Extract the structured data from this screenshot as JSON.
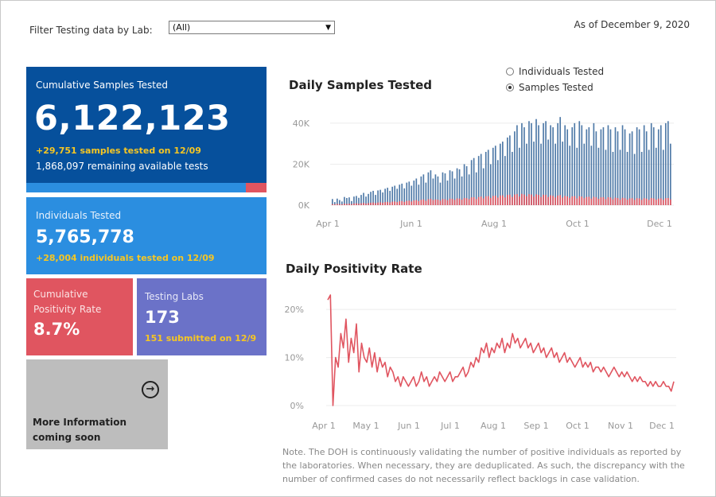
{
  "filter": {
    "label": "Filter Testing data by Lab:",
    "selected": "(All)"
  },
  "as_of": "As of December 9, 2020",
  "tiles": {
    "cumulative_samples": {
      "label": "Cumulative Samples Tested",
      "value": "6,122,123",
      "delta": "+29,751 samples tested on 12/09",
      "remaining": "1,868,097 remaining available tests",
      "used_fraction": 0.914
    },
    "individuals": {
      "label": "Individuals Tested",
      "value": "5,765,778",
      "delta": "+28,004  individuals  tested on 12/09"
    },
    "positivity": {
      "label": "Cumulative Positivity Rate",
      "value": "8.7%"
    },
    "labs": {
      "label": "Testing Labs",
      "value": "173",
      "delta": "151 submitted on 12/9"
    },
    "more": {
      "icon": "arrow-circle-right-icon",
      "text": "More Information coming soon"
    }
  },
  "toggle": {
    "options": [
      "Individuals Tested",
      "Samples Tested"
    ],
    "selected": "Samples Tested"
  },
  "colors": {
    "samples": "#4e79a7",
    "positives": "#e05560",
    "line": "#e05560"
  },
  "chart_data": [
    {
      "type": "bar",
      "title": "Daily Samples Tested",
      "x_start": "2020-04-07",
      "x_ticks": [
        "Apr 1",
        "Jun 1",
        "Aug 1",
        "Oct 1",
        "Dec 1"
      ],
      "y_ticks": [
        "0K",
        "20K",
        "40K"
      ],
      "ylim": [
        0,
        45000
      ],
      "series": [
        {
          "name": "Samples",
          "values": [
            3000,
            1500,
            3200,
            2500,
            1800,
            4000,
            3500,
            3800,
            2000,
            4200,
            4500,
            3600,
            5000,
            6000,
            4200,
            5500,
            6500,
            7000,
            5000,
            7200,
            7500,
            6200,
            8000,
            8500,
            7000,
            9000,
            9500,
            8000,
            10000,
            10500,
            8200,
            11000,
            11500,
            9500,
            12000,
            13000,
            10000,
            14000,
            15000,
            11000,
            16000,
            17000,
            13000,
            15000,
            14000,
            11000,
            16000,
            15500,
            12000,
            17000,
            16500,
            13000,
            18000,
            17500,
            14000,
            20000,
            19000,
            15000,
            22000,
            23000,
            16000,
            24000,
            25000,
            18000,
            26000,
            27000,
            20000,
            28000,
            29000,
            22000,
            30000,
            31000,
            24000,
            33000,
            34000,
            26000,
            36000,
            39000,
            28000,
            40000,
            38000,
            30000,
            41000,
            40000,
            31000,
            42000,
            39000,
            30000,
            40000,
            41000,
            32000,
            39000,
            38000,
            30000,
            40000,
            43000,
            31000,
            39000,
            37000,
            29000,
            38000,
            40000,
            28000,
            41000,
            39000,
            30000,
            37000,
            38000,
            29000,
            40000,
            36000,
            28000,
            37000,
            38000,
            27000,
            39000,
            37000,
            26000,
            38000,
            36000,
            27000,
            39000,
            37000,
            26000,
            35000,
            36000,
            25000,
            38000,
            37000,
            26000,
            39000,
            36000,
            27000,
            40000,
            38000,
            28000,
            37000,
            39000,
            27000,
            40000,
            41000,
            30000
          ],
          "color": "#4e79a7"
        },
        {
          "name": "Positives",
          "values": [
            500,
            400,
            600,
            500,
            400,
            700,
            600,
            700,
            500,
            800,
            900,
            700,
            900,
            1100,
            800,
            1000,
            1200,
            1300,
            1000,
            1300,
            1400,
            1200,
            1500,
            1600,
            1300,
            1700,
            1800,
            1500,
            1900,
            2000,
            1600,
            2100,
            2200,
            1800,
            2300,
            2500,
            2000,
            2600,
            2800,
            2100,
            2900,
            3100,
            2500,
            2800,
            2700,
            2200,
            3000,
            2900,
            2400,
            3200,
            3100,
            2600,
            3300,
            3200,
            2700,
            3500,
            3400,
            2900,
            3800,
            3900,
            3000,
            4000,
            4200,
            3300,
            4300,
            4400,
            3500,
            4500,
            4600,
            3700,
            4700,
            4800,
            3800,
            5000,
            5100,
            4000,
            5200,
            5400,
            4200,
            5500,
            5200,
            4300,
            5400,
            5200,
            4200,
            5300,
            5000,
            4000,
            5100,
            5000,
            4000,
            4800,
            4600,
            3800,
            4700,
            4900,
            3700,
            4500,
            4300,
            3500,
            4300,
            4400,
            3300,
            4400,
            4200,
            3400,
            4000,
            4100,
            3200,
            4100,
            3800,
            3100,
            3800,
            3900,
            3000,
            3900,
            3700,
            2900,
            3700,
            3500,
            2800,
            3600,
            3400,
            2700,
            3300,
            3400,
            2600,
            3400,
            3300,
            2600,
            3400,
            3200,
            2600,
            3500,
            3300,
            2700,
            3200,
            3300,
            2600,
            3400,
            3500,
            2800
          ],
          "color": "#e05560"
        }
      ]
    },
    {
      "type": "line",
      "title": "Daily Positivity Rate",
      "x_start": "2020-04-01",
      "x_ticks": [
        "Apr 1",
        "May 1",
        "Jun 1",
        "Jul 1",
        "Aug 1",
        "Sep 1",
        "Oct 1",
        "Nov 1",
        "Dec 1"
      ],
      "y_ticks": [
        "0%",
        "10%",
        "20%"
      ],
      "ylim": [
        0,
        24
      ],
      "series": [
        {
          "name": "Positivity Rate",
          "values": [
            22,
            23,
            0,
            10,
            8,
            15,
            12,
            18,
            9,
            14,
            11,
            17,
            7,
            13,
            10,
            9,
            12,
            8,
            11,
            7,
            10,
            8,
            9,
            6,
            8,
            7,
            5,
            6,
            4,
            6,
            5,
            4,
            5,
            6,
            4,
            5,
            7,
            5,
            6,
            4,
            5,
            6,
            5,
            7,
            6,
            5,
            6,
            7,
            5,
            6,
            6,
            7,
            8,
            6,
            7,
            9,
            8,
            10,
            9,
            12,
            11,
            13,
            10,
            12,
            11,
            13,
            12,
            14,
            11,
            13,
            12,
            15,
            13,
            14,
            12,
            13,
            14,
            12,
            13,
            11,
            12,
            13,
            11,
            12,
            10,
            11,
            12,
            10,
            11,
            9,
            10,
            11,
            9,
            10,
            9,
            8,
            9,
            10,
            8,
            9,
            8,
            9,
            7,
            8,
            8,
            7,
            8,
            7,
            6,
            7,
            8,
            7,
            6,
            7,
            6,
            7,
            6,
            5,
            6,
            5,
            6,
            5,
            5,
            4,
            5,
            4,
            5,
            4,
            4,
            5,
            4,
            4,
            3,
            5
          ]
        }
      ]
    }
  ],
  "note": "Note. The DOH is continuously validating the number of positive individuals as reported by the laboratories. When necessary, they are deduplicated. As such, the discrepancy with the number of confirmed cases do not necessarily reflect backlogs in case validation."
}
